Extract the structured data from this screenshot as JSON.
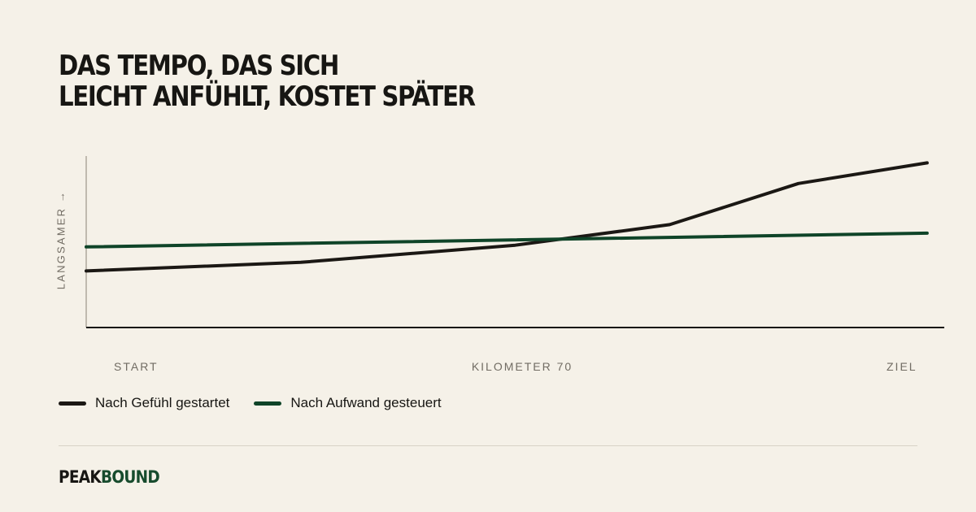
{
  "title": {
    "line_1": "DAS TEMPO, DAS SICH",
    "line_2": "LEICHT ANFÜHLT, KOSTET SPÄTER"
  },
  "chart_data": {
    "type": "line",
    "title": "DAS TEMPO, DAS SICH LEICHT ANFÜHLT, KOSTET SPÄTER",
    "xlabel": "",
    "ylabel": "LANGSAMER →",
    "xlim": [
      0,
      100
    ],
    "ylim": [
      0,
      100
    ],
    "x_tick_positions": [
      3,
      50,
      97
    ],
    "x_tick_labels": [
      "START",
      "KILOMETER 70",
      "ZIEL"
    ],
    "grid": false,
    "legend_position": "bottom-left",
    "series": [
      {
        "name": "Nach Gefühl gestartet",
        "color": "#1b1814",
        "x": [
          0,
          25,
          50,
          68,
          83,
          98
        ],
        "y": [
          33,
          38,
          48,
          60,
          84,
          96
        ]
      },
      {
        "name": "Nach Aufwand gesteuert",
        "color": "#0f4428",
        "x": [
          0,
          98
        ],
        "y": [
          47,
          55
        ]
      }
    ]
  },
  "brand": {
    "part_1": "PEAK",
    "part_2": "BOUND",
    "dark_color": "#171613",
    "accent_color": "#174b2d"
  }
}
